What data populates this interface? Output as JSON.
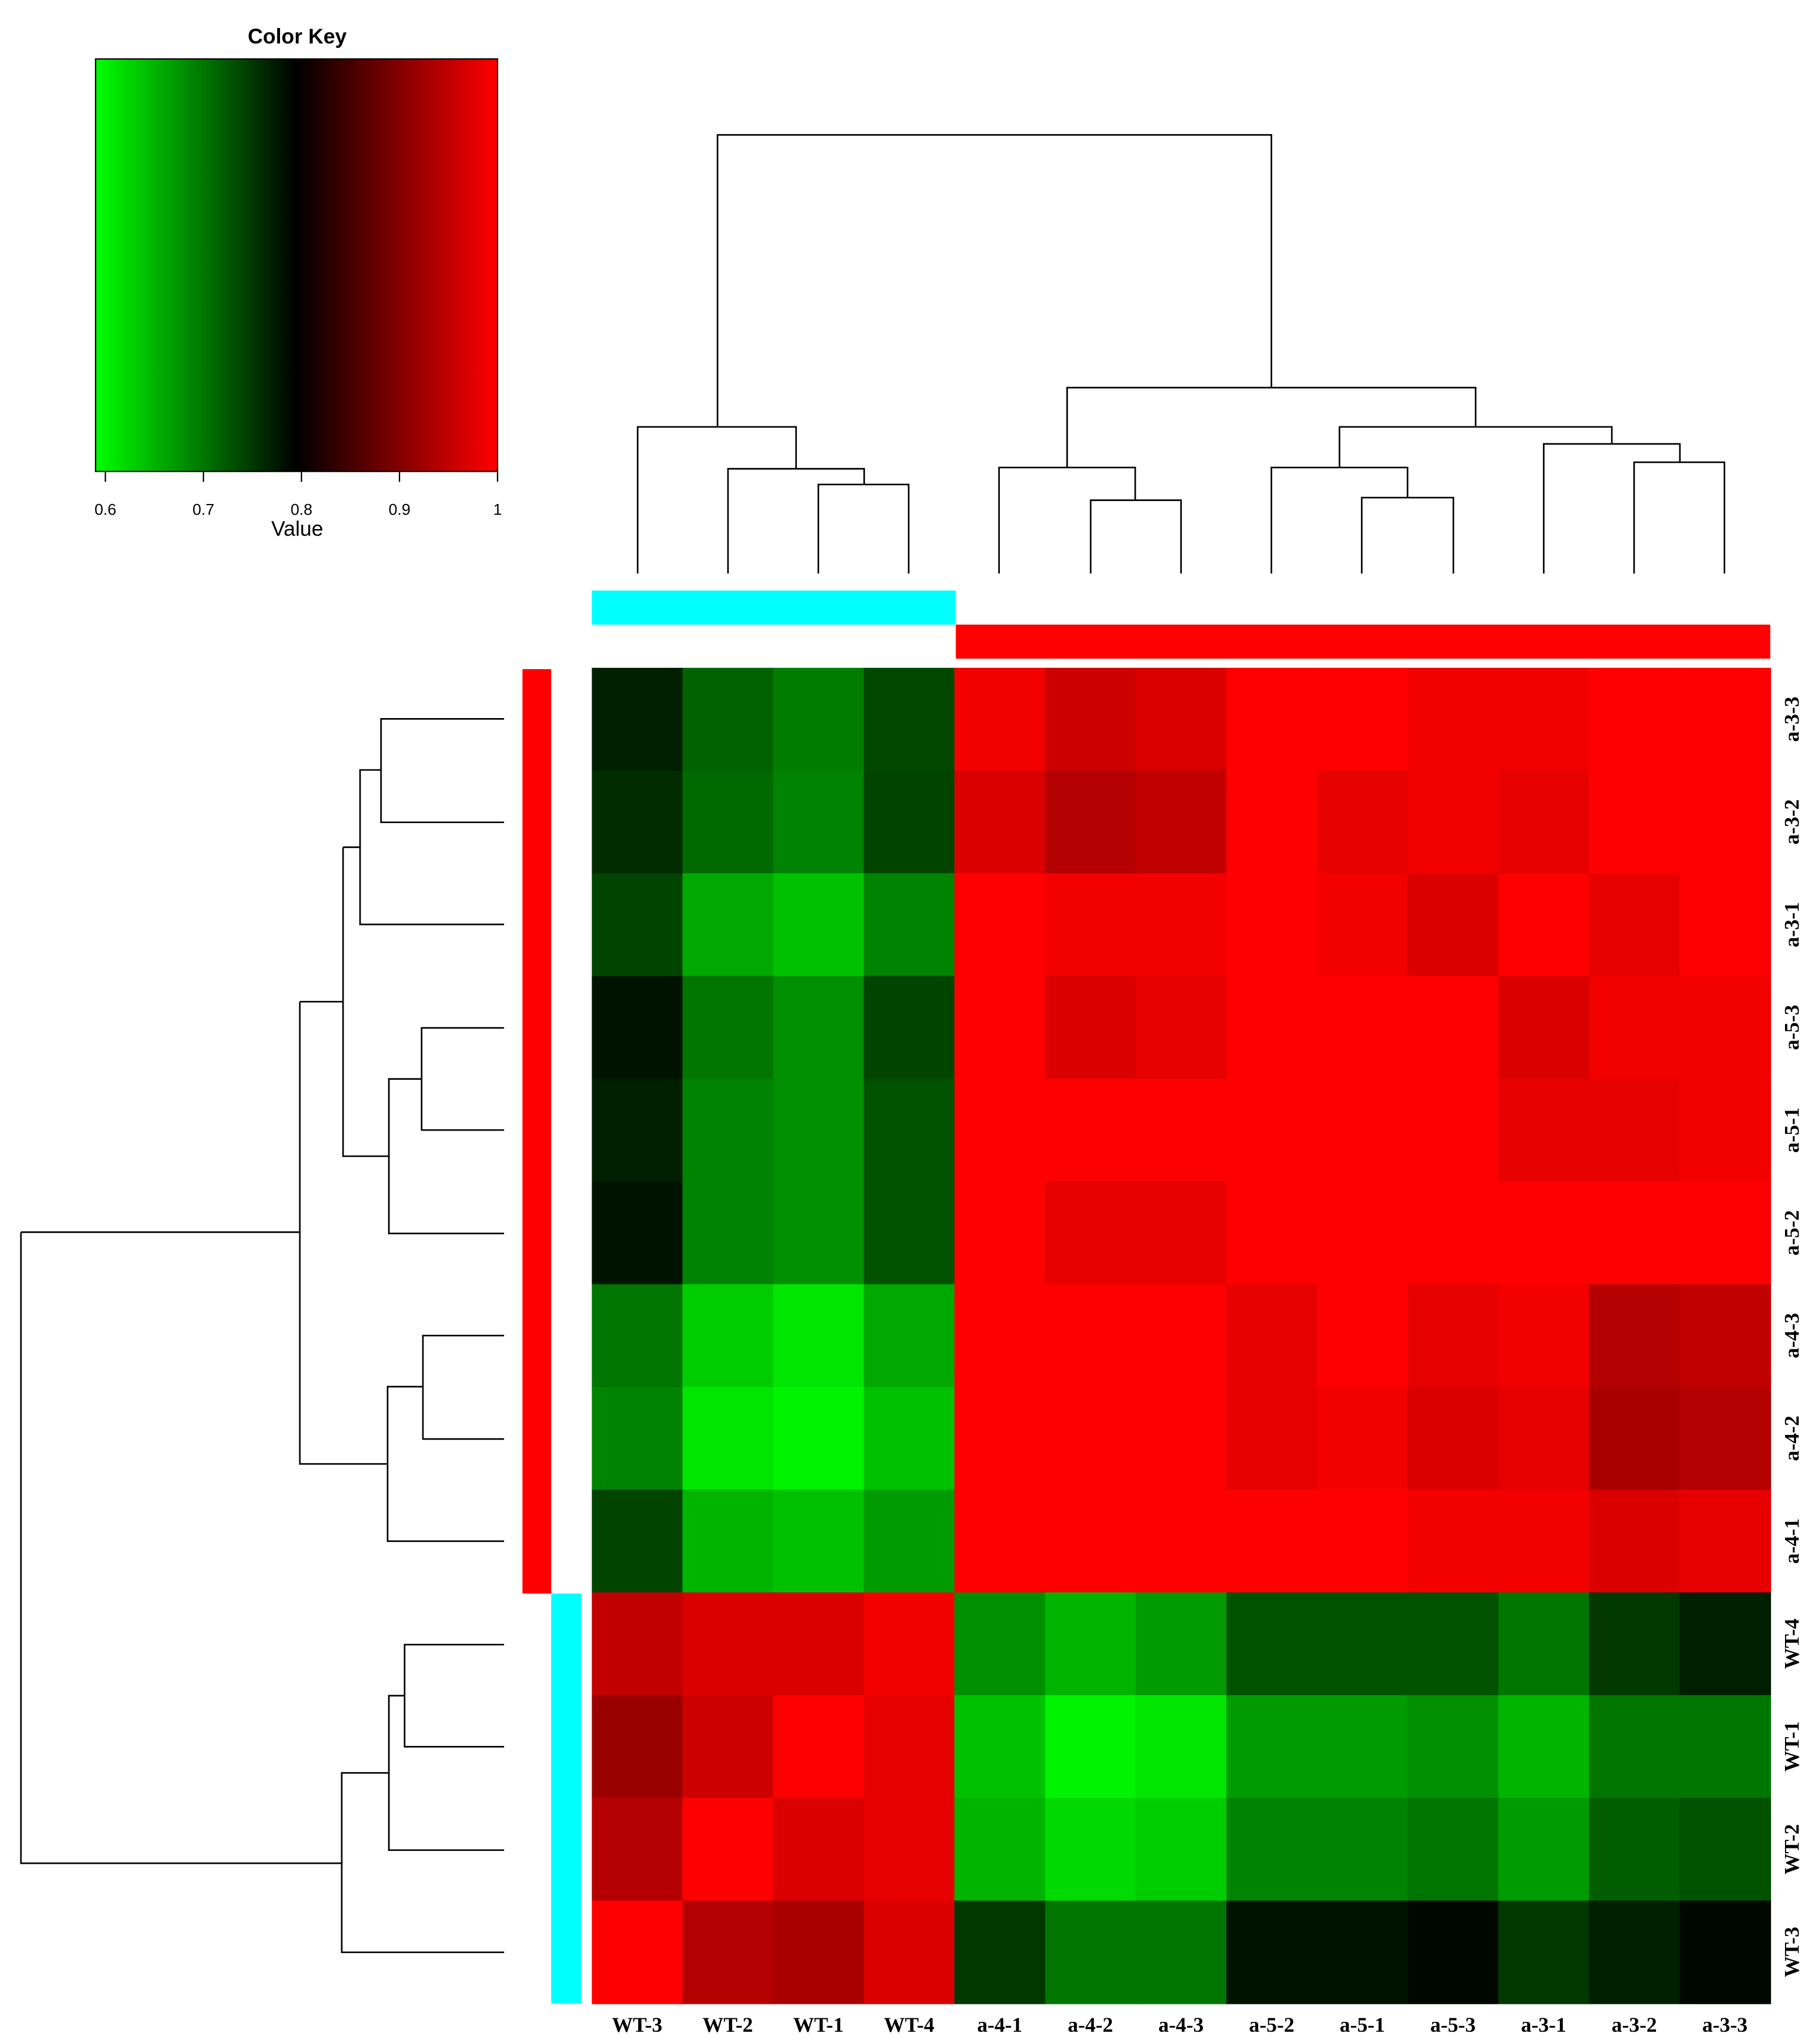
{
  "chart_data": {
    "type": "heatmap",
    "title": "Color Key",
    "xlabel": "Value",
    "xlim": [
      0.59,
      1
    ],
    "xticks": [
      0.6,
      0.7,
      0.8,
      0.9,
      1
    ],
    "colors": [
      "#00ff00",
      "#000000",
      "#ff0000"
    ],
    "categories": [
      "WT-3",
      "WT-2",
      "WT-1",
      "WT-4",
      "a-4-1",
      "a-4-2",
      "a-4-3",
      "a-5-2",
      "a-5-1",
      "a-5-3",
      "a-3-1",
      "a-3-2",
      "a-3-3"
    ],
    "rows": [
      "a-3-3",
      "a-3-2",
      "a-3-1",
      "a-5-3",
      "a-5-1",
      "a-5-2",
      "a-4-3",
      "a-4-2",
      "a-4-1",
      "WT-4",
      "WT-1",
      "WT-2",
      "WT-3"
    ],
    "values": [
      [
        0.77,
        0.716,
        0.695,
        0.737,
        0.99,
        0.96,
        0.97,
        1,
        1,
        0.99,
        0.99,
        1,
        1
      ],
      [
        0.76,
        0.71,
        0.69,
        0.74,
        0.97,
        0.94,
        0.95,
        1,
        0.98,
        0.99,
        0.98,
        1,
        1
      ],
      [
        0.74,
        0.66,
        0.64,
        0.69,
        1,
        0.99,
        0.99,
        1,
        0.99,
        0.97,
        1,
        0.98,
        1
      ],
      [
        0.78,
        0.7,
        0.68,
        0.74,
        1,
        0.97,
        0.98,
        1,
        1,
        1,
        0.97,
        0.99,
        0.99
      ],
      [
        0.77,
        0.69,
        0.68,
        0.73,
        1,
        1,
        1,
        1,
        1,
        1,
        0.98,
        0.98,
        0.99
      ],
      [
        0.78,
        0.69,
        0.68,
        0.73,
        1,
        0.98,
        0.98,
        1,
        1,
        1,
        1,
        1,
        1
      ],
      [
        0.7,
        0.63,
        0.61,
        0.66,
        1,
        1,
        1,
        0.98,
        1,
        0.98,
        0.99,
        0.94,
        0.95
      ],
      [
        0.69,
        0.61,
        0.6,
        0.64,
        1,
        1,
        1,
        0.98,
        0.99,
        0.97,
        0.98,
        0.93,
        0.94
      ],
      [
        0.74,
        0.65,
        0.64,
        0.67,
        1,
        1,
        1,
        1,
        1,
        0.99,
        0.99,
        0.97,
        0.98
      ],
      [
        0.95,
        0.97,
        0.97,
        0.99,
        0.68,
        0.65,
        0.67,
        0.73,
        0.73,
        0.73,
        0.7,
        0.75,
        0.77
      ],
      [
        0.92,
        0.96,
        1,
        0.98,
        0.64,
        0.6,
        0.61,
        0.67,
        0.67,
        0.68,
        0.65,
        0.7,
        0.7
      ],
      [
        0.94,
        1,
        0.97,
        0.98,
        0.65,
        0.62,
        0.63,
        0.69,
        0.69,
        0.7,
        0.67,
        0.72,
        0.73
      ],
      [
        1,
        0.94,
        0.93,
        0.97,
        0.75,
        0.7,
        0.7,
        0.78,
        0.78,
        0.79,
        0.75,
        0.77,
        0.79
      ]
    ]
  }
}
